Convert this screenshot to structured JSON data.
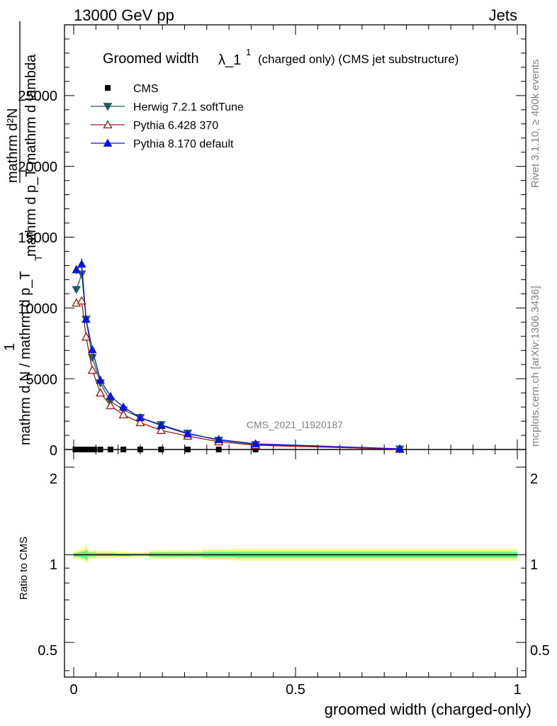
{
  "header": {
    "energy": "13000 GeV pp",
    "category": "Jets"
  },
  "side_text": {
    "rivet": "Rivet 3.1.10, ≥ 400k events",
    "mcplots": "mcplots.cern.ch [arXiv:1306.3436]"
  },
  "watermark": "CMS_2021_I1920187",
  "main_plot": {
    "title_main": "Groomed width",
    "title_lambda": "λ_1",
    "title_sup": "1",
    "title_note": "(charged only) (CMS jet substructure)",
    "ylabel_top": "mathrm d²N",
    "ylabel_bottom": "mathrm d p_T mathrm d lambda",
    "ylabel_one": "1",
    "ylabel_frac": "mathrm d N / mathrm d p_T",
    "ylabel_pT_sub": "T",
    "y_ticks": [
      "0",
      "5000",
      "10000",
      "15000",
      "20000",
      "25000"
    ]
  },
  "ratio_plot": {
    "ylabel": "Ratio to CMS",
    "y_ticks": [
      "0.5",
      "1",
      "2"
    ],
    "y_ticks_right": [
      "0.5",
      "1",
      "2"
    ]
  },
  "x_axis": {
    "label": "groomed width (charged-only)",
    "ticks": [
      "0",
      "0.5",
      "1"
    ]
  },
  "chart_data": {
    "type": "line",
    "title": "Groomed width λ_1^1 (charged only) (CMS jet substructure)",
    "xlabel": "groomed width (charged-only)",
    "ylabel": "1/(dN/dp_T) d²N/(dp_T dλ)",
    "xlim": [
      -0.02,
      1.0
    ],
    "ylim": [
      0,
      30000
    ],
    "ratio_ylim": [
      0.38,
      2.3
    ],
    "legend_position": "top-left",
    "colors": {
      "cms": "#000000",
      "herwig": "#215d5d",
      "pythia6": "#a0161d",
      "pythia8": "#0a16d4",
      "band_outer": "#f7f78a",
      "band_inner": "#6cf08a"
    },
    "series": [
      {
        "name": "CMS",
        "key": "cms",
        "marker": "square",
        "x": [
          0.004,
          0.012,
          0.02,
          0.028,
          0.036,
          0.046,
          0.06,
          0.083,
          0.112,
          0.15,
          0.197,
          0.257,
          0.327,
          0.41,
          0.735
        ],
        "values": [
          0,
          0,
          0,
          0,
          0,
          0,
          0,
          0,
          0,
          0,
          0,
          0,
          0,
          0,
          0
        ]
      },
      {
        "name": "Herwig 7.2.1 softTune",
        "key": "herwig",
        "marker": "triangle-down",
        "x": [
          0.006,
          0.018,
          0.028,
          0.042,
          0.06,
          0.083,
          0.112,
          0.15,
          0.197,
          0.257,
          0.327,
          0.41,
          0.735
        ],
        "values": [
          11300,
          12400,
          9200,
          6500,
          4700,
          3400,
          2800,
          2250,
          1750,
          1150,
          650,
          350,
          30
        ]
      },
      {
        "name": "Pythia 6.428 370",
        "key": "pythia6",
        "marker": "triangle-open",
        "x": [
          0.006,
          0.018,
          0.028,
          0.042,
          0.06,
          0.083,
          0.112,
          0.15,
          0.197,
          0.257,
          0.327,
          0.41,
          0.735
        ],
        "values": [
          10350,
          10500,
          7950,
          5600,
          4000,
          3100,
          2450,
          1900,
          1350,
          950,
          550,
          300,
          20
        ]
      },
      {
        "name": "Pythia 8.170 default",
        "key": "pythia8",
        "marker": "triangle-up",
        "x": [
          0.006,
          0.018,
          0.028,
          0.042,
          0.06,
          0.083,
          0.112,
          0.15,
          0.197,
          0.257,
          0.327,
          0.41,
          0.735
        ],
        "values": [
          12700,
          13100,
          9200,
          7050,
          4900,
          3750,
          3000,
          2250,
          1700,
          1100,
          700,
          400,
          50
        ],
        "errors": [
          300,
          400,
          200,
          150,
          100,
          80,
          60,
          50,
          40,
          30,
          20,
          15,
          10
        ]
      }
    ],
    "ratio_bands": {
      "edges": [
        0.0,
        0.008,
        0.016,
        0.024,
        0.032,
        0.05,
        0.07,
        0.095,
        0.13,
        0.17,
        0.225,
        0.29,
        0.365,
        1.0
      ],
      "outer_lo": [
        0.965,
        0.97,
        0.96,
        0.94,
        0.97,
        0.975,
        0.975,
        0.98,
        0.985,
        0.97,
        0.97,
        0.96,
        0.955
      ],
      "outer_hi": [
        1.035,
        1.04,
        1.05,
        1.07,
        1.035,
        1.03,
        1.03,
        1.025,
        1.02,
        1.035,
        1.035,
        1.045,
        1.05
      ],
      "inner_lo": [
        0.985,
        0.985,
        0.975,
        0.965,
        0.985,
        0.99,
        0.99,
        0.99,
        0.995,
        0.985,
        0.985,
        0.98,
        0.975
      ],
      "inner_hi": [
        1.015,
        1.02,
        1.025,
        1.035,
        1.02,
        1.015,
        1.015,
        1.01,
        1.01,
        1.02,
        1.02,
        1.025,
        1.025
      ]
    }
  }
}
